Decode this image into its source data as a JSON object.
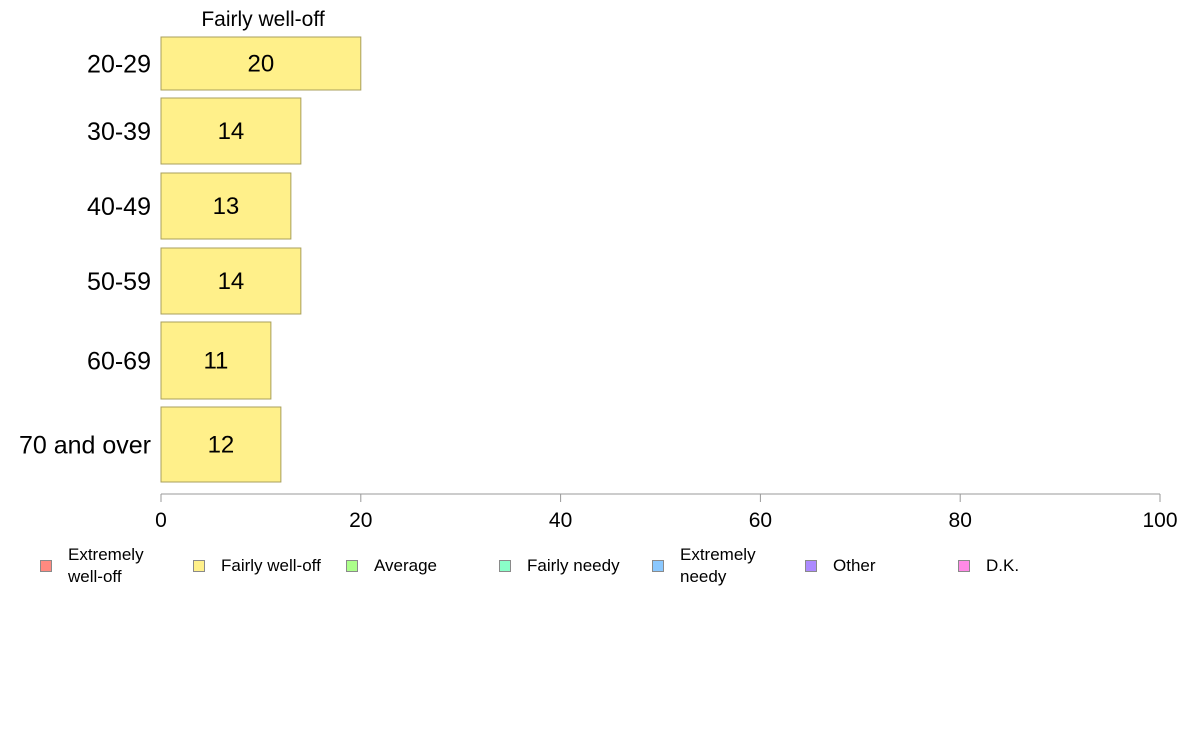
{
  "chart_data": {
    "type": "bar",
    "orientation": "horizontal",
    "title": "Fairly well-off",
    "categories": [
      "20-29",
      "30-39",
      "40-49",
      "50-59",
      "60-69",
      "70 and over"
    ],
    "series": [
      {
        "name": "Fairly well-off",
        "values": [
          20,
          14,
          13,
          14,
          11,
          12
        ]
      }
    ],
    "xlim": [
      0,
      100
    ],
    "xticks": [
      0,
      20,
      40,
      60,
      80,
      100
    ],
    "xlabel": "",
    "ylabel": "",
    "grid": false,
    "bar_color": "#fff08a",
    "bar_edge_color": "#a89f5c",
    "legend": {
      "placement": "bottom",
      "items": [
        {
          "label": "Extremely well-off",
          "color": "#ff8a80"
        },
        {
          "label": "Fairly well-off",
          "color": "#fff08a"
        },
        {
          "label": "Average",
          "color": "#acff8a"
        },
        {
          "label": "Fairly needy",
          "color": "#8affc8"
        },
        {
          "label": "Extremely needy",
          "color": "#8ac8ff"
        },
        {
          "label": "Other",
          "color": "#ac8aff"
        },
        {
          "label": "D.K.",
          "color": "#ff8ae6"
        }
      ]
    }
  }
}
